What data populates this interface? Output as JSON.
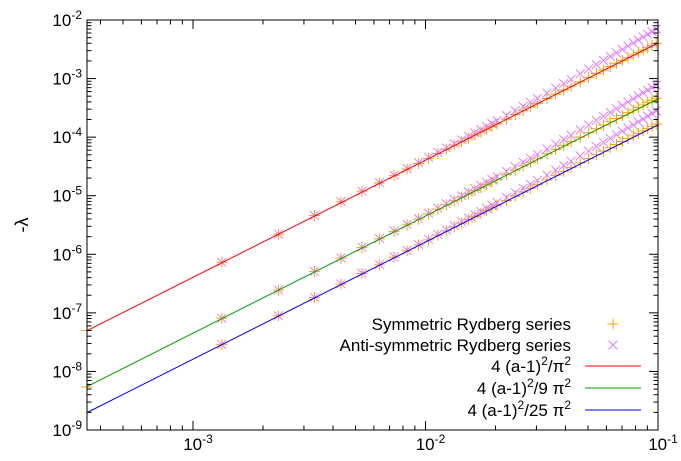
{
  "chart_data": {
    "type": "scatter",
    "title": "",
    "xlabel": "",
    "ylabel": "-λ",
    "xscale": "log",
    "yscale": "log",
    "xlim": [
      0.00035,
      0.1
    ],
    "ylim": [
      1e-09,
      0.01
    ],
    "grid": false,
    "legend_position": "bottom-right",
    "x_ticks": [
      {
        "value": 0.001,
        "base": "10",
        "exp": "-3"
      },
      {
        "value": 0.01,
        "base": "10",
        "exp": "-2"
      },
      {
        "value": 0.1,
        "base": "10",
        "exp": "-1"
      }
    ],
    "y_ticks": [
      {
        "value": 1e-09,
        "base": "10",
        "exp": "-9"
      },
      {
        "value": 1e-08,
        "base": "10",
        "exp": "-8"
      },
      {
        "value": 1e-07,
        "base": "10",
        "exp": "-7"
      },
      {
        "value": 1e-06,
        "base": "10",
        "exp": "-6"
      },
      {
        "value": 1e-05,
        "base": "10",
        "exp": "-5"
      },
      {
        "value": 0.0001,
        "base": "10",
        "exp": "-4"
      },
      {
        "value": 0.001,
        "base": "10",
        "exp": "-3"
      },
      {
        "value": 0.01,
        "base": "10",
        "exp": "-2"
      }
    ],
    "series": [
      {
        "name": "Symmetric Rydberg series",
        "kind": "points",
        "marker": "plus",
        "color": "#ffa000",
        "points": [
          [
            0.00035,
            5e-08
          ],
          [
            0.00133,
            7.3e-07
          ],
          [
            0.00233,
            2.2e-06
          ],
          [
            0.00333,
            4.6e-06
          ],
          [
            0.00433,
            7.9e-06
          ],
          [
            0.00533,
            1.2e-05
          ],
          [
            0.00633,
            1.65e-05
          ],
          [
            0.00733,
            2.2e-05
          ],
          [
            0.00833,
            2.85e-05
          ],
          [
            0.00933,
            3.55e-05
          ],
          [
            0.0103,
            4.35e-05
          ],
          [
            0.0113,
            5.25e-05
          ],
          [
            0.0123,
            6.2e-05
          ],
          [
            0.0133,
            7.3e-05
          ],
          [
            0.0143,
            8.4e-05
          ],
          [
            0.0153,
            9.6e-05
          ],
          [
            0.0163,
            0.000109
          ],
          [
            0.0173,
            0.000123
          ],
          [
            0.0183,
            0.000137
          ],
          [
            0.0193,
            0.000153
          ],
          [
            0.0203,
            0.000169
          ],
          [
            0.0223,
            0.000204
          ],
          [
            0.0243,
            0.000242
          ],
          [
            0.0263,
            0.000284
          ],
          [
            0.0283,
            0.000329
          ],
          [
            0.0303,
            0.000378
          ],
          [
            0.0333,
            0.000457
          ],
          [
            0.0363,
            0.000543
          ],
          [
            0.0393,
            0.000637
          ],
          [
            0.0423,
            0.000738
          ],
          [
            0.0463,
            0.000884
          ],
          [
            0.0503,
            0.00104
          ],
          [
            0.0543,
            0.00122
          ],
          [
            0.0583,
            0.0014
          ],
          [
            0.0623,
            0.0016
          ],
          [
            0.0663,
            0.00182
          ],
          [
            0.0703,
            0.00204
          ],
          [
            0.0743,
            0.00228
          ],
          [
            0.0783,
            0.00253
          ],
          [
            0.0823,
            0.0028
          ],
          [
            0.0863,
            0.00308
          ],
          [
            0.0903,
            0.00337
          ],
          [
            0.0943,
            0.00367
          ],
          [
            0.0983,
            0.00399
          ],
          [
            0.00035,
            5.4e-09
          ],
          [
            0.00133,
            8.1e-08
          ],
          [
            0.00233,
            2.45e-07
          ],
          [
            0.00333,
            5.1e-07
          ],
          [
            0.00433,
            8.6e-07
          ],
          [
            0.00533,
            1.3e-06
          ],
          [
            0.00633,
            1.84e-06
          ],
          [
            0.00733,
            2.46e-06
          ],
          [
            0.00833,
            3.18e-06
          ],
          [
            0.00933,
            3.99e-06
          ],
          [
            0.0103,
            4.9e-06
          ],
          [
            0.0113,
            5.9e-06
          ],
          [
            0.0123,
            7e-06
          ],
          [
            0.0133,
            8.2e-06
          ],
          [
            0.0143,
            9.5e-06
          ],
          [
            0.0153,
            1.08e-05
          ],
          [
            0.0163,
            1.23e-05
          ],
          [
            0.0173,
            1.38e-05
          ],
          [
            0.0183,
            1.55e-05
          ],
          [
            0.0193,
            1.72e-05
          ],
          [
            0.0203,
            1.91e-05
          ],
          [
            0.0223,
            2.31e-05
          ],
          [
            0.0243,
            2.74e-05
          ],
          [
            0.0263,
            3.21e-05
          ],
          [
            0.0283,
            3.72e-05
          ],
          [
            0.0303,
            4.28e-05
          ],
          [
            0.0333,
            5.17e-05
          ],
          [
            0.0363,
            6.15e-05
          ],
          [
            0.0393,
            7.22e-05
          ],
          [
            0.0423,
            8.39e-05
          ],
          [
            0.0463,
            0.0001
          ],
          [
            0.0503,
            0.000119
          ],
          [
            0.0543,
            0.000139
          ],
          [
            0.0583,
            0.00016
          ],
          [
            0.0623,
            0.000183
          ],
          [
            0.0663,
            0.000208
          ],
          [
            0.0703,
            0.000234
          ],
          [
            0.0743,
            0.000262
          ],
          [
            0.0783,
            0.000291
          ],
          [
            0.0823,
            0.000322
          ],
          [
            0.0863,
            0.000355
          ],
          [
            0.0903,
            0.000389
          ],
          [
            0.0943,
            0.000425
          ],
          [
            0.0983,
            0.000462
          ],
          [
            0.00133,
            2.9e-08
          ],
          [
            0.00233,
            8.9e-08
          ],
          [
            0.00333,
            1.83e-07
          ],
          [
            0.00433,
            3.1e-07
          ],
          [
            0.00533,
            4.7e-07
          ],
          [
            0.00633,
            6.6e-07
          ],
          [
            0.00733,
            8.9e-07
          ],
          [
            0.00833,
            1.15e-06
          ],
          [
            0.00933,
            1.44e-06
          ],
          [
            0.0103,
            1.76e-06
          ],
          [
            0.0113,
            2.12e-06
          ],
          [
            0.0123,
            2.52e-06
          ],
          [
            0.0133,
            2.95e-06
          ],
          [
            0.0143,
            3.41e-06
          ],
          [
            0.0153,
            3.9e-06
          ],
          [
            0.0163,
            4.43e-06
          ],
          [
            0.0173,
            5e-06
          ],
          [
            0.0183,
            5.6e-06
          ],
          [
            0.0193,
            6.2e-06
          ],
          [
            0.0203,
            6.9e-06
          ],
          [
            0.0223,
            8.3e-06
          ],
          [
            0.0243,
            9.9e-06
          ],
          [
            0.0263,
            1.16e-05
          ],
          [
            0.0283,
            1.34e-05
          ],
          [
            0.0303,
            1.54e-05
          ],
          [
            0.0333,
            1.86e-05
          ],
          [
            0.0363,
            2.22e-05
          ],
          [
            0.0393,
            2.6e-05
          ],
          [
            0.0423,
            3.02e-05
          ],
          [
            0.0463,
            3.63e-05
          ],
          [
            0.0503,
            4.29e-05
          ],
          [
            0.0543,
            5e-05
          ],
          [
            0.0583,
            5.77e-05
          ],
          [
            0.0623,
            6.6e-05
          ],
          [
            0.0663,
            7.48e-05
          ],
          [
            0.0703,
            8.43e-05
          ],
          [
            0.0743,
            9.43e-05
          ],
          [
            0.0783,
            0.000105
          ],
          [
            0.0823,
            0.000116
          ],
          [
            0.0863,
            0.000128
          ],
          [
            0.0903,
            0.00014
          ],
          [
            0.0943,
            0.000153
          ],
          [
            0.0983,
            0.000166
          ]
        ]
      },
      {
        "name": "Anti-symmetric Rydberg series",
        "kind": "points",
        "marker": "cross",
        "color": "#e080ff",
        "points": [
          [
            0.00133,
            7.3e-07
          ],
          [
            0.00233,
            2.2e-06
          ],
          [
            0.00333,
            4.6e-06
          ],
          [
            0.00433,
            8e-06
          ],
          [
            0.00533,
            1.2e-05
          ],
          [
            0.00633,
            1.67e-05
          ],
          [
            0.00733,
            2.25e-05
          ],
          [
            0.00833,
            2.92e-05
          ],
          [
            0.00933,
            3.67e-05
          ],
          [
            0.0103,
            4.52e-05
          ],
          [
            0.0113,
            5.48e-05
          ],
          [
            0.0123,
            6.55e-05
          ],
          [
            0.0133,
            7.73e-05
          ],
          [
            0.0143,
            9e-05
          ],
          [
            0.0153,
            0.000104
          ],
          [
            0.0163,
            0.000119
          ],
          [
            0.0173,
            0.000135
          ],
          [
            0.0183,
            0.000153
          ],
          [
            0.0193,
            0.000171
          ],
          [
            0.0203,
            0.000191
          ],
          [
            0.0223,
            0.000234
          ],
          [
            0.0243,
            0.000282
          ],
          [
            0.0263,
            0.000335
          ],
          [
            0.0283,
            0.000393
          ],
          [
            0.0303,
            0.000458
          ],
          [
            0.0333,
            0.000565
          ],
          [
            0.0363,
            0.000686
          ],
          [
            0.0393,
            0.00082
          ],
          [
            0.0423,
            0.00097
          ],
          [
            0.0463,
            0.0012
          ],
          [
            0.0503,
            0.00145
          ],
          [
            0.0543,
            0.00173
          ],
          [
            0.0583,
            0.00204
          ],
          [
            0.0623,
            0.00238
          ],
          [
            0.0663,
            0.00275
          ],
          [
            0.0703,
            0.00315
          ],
          [
            0.0743,
            0.00359
          ],
          [
            0.0783,
            0.00406
          ],
          [
            0.0823,
            0.00457
          ],
          [
            0.0863,
            0.00512
          ],
          [
            0.0903,
            0.0057
          ],
          [
            0.0943,
            0.00633
          ],
          [
            0.0983,
            0.00699
          ],
          [
            0.00133,
            8.1e-08
          ],
          [
            0.00233,
            2.47e-07
          ],
          [
            0.00333,
            5.1e-07
          ],
          [
            0.00433,
            8.7e-07
          ],
          [
            0.00533,
            1.32e-06
          ],
          [
            0.00633,
            1.86e-06
          ],
          [
            0.00733,
            2.5e-06
          ],
          [
            0.00833,
            3.24e-06
          ],
          [
            0.00933,
            4.08e-06
          ],
          [
            0.0103,
            5.02e-06
          ],
          [
            0.0113,
            6.1e-06
          ],
          [
            0.0123,
            7.28e-06
          ],
          [
            0.0133,
            8.6e-06
          ],
          [
            0.0143,
            1e-05
          ],
          [
            0.0153,
            1.16e-05
          ],
          [
            0.0163,
            1.32e-05
          ],
          [
            0.0173,
            1.5e-05
          ],
          [
            0.0183,
            1.7e-05
          ],
          [
            0.0193,
            1.9e-05
          ],
          [
            0.0203,
            2.12e-05
          ],
          [
            0.0223,
            2.6e-05
          ],
          [
            0.0243,
            3.13e-05
          ],
          [
            0.0263,
            3.72e-05
          ],
          [
            0.0283,
            4.37e-05
          ],
          [
            0.0303,
            5.09e-05
          ],
          [
            0.0333,
            6.28e-05
          ],
          [
            0.0363,
            7.62e-05
          ],
          [
            0.0393,
            9.11e-05
          ],
          [
            0.0423,
            0.000108
          ],
          [
            0.0463,
            0.000133
          ],
          [
            0.0503,
            0.000161
          ],
          [
            0.0543,
            0.000192
          ],
          [
            0.0583,
            0.000227
          ],
          [
            0.0623,
            0.000264
          ],
          [
            0.0663,
            0.000306
          ],
          [
            0.0703,
            0.00035
          ],
          [
            0.0743,
            0.000399
          ],
          [
            0.0783,
            0.000451
          ],
          [
            0.0823,
            0.000508
          ],
          [
            0.0863,
            0.000569
          ],
          [
            0.0903,
            0.000634
          ],
          [
            0.0943,
            0.000703
          ],
          [
            0.0983,
            0.000777
          ],
          [
            0.00133,
            2.9e-08
          ],
          [
            0.00233,
            8.9e-08
          ],
          [
            0.00333,
            1.84e-07
          ],
          [
            0.00433,
            3.13e-07
          ],
          [
            0.00533,
            4.76e-07
          ],
          [
            0.00633,
            6.7e-07
          ],
          [
            0.00733,
            9e-07
          ],
          [
            0.00833,
            1.17e-06
          ],
          [
            0.00933,
            1.47e-06
          ],
          [
            0.0103,
            1.81e-06
          ],
          [
            0.0113,
            2.19e-06
          ],
          [
            0.0123,
            2.62e-06
          ],
          [
            0.0133,
            3.09e-06
          ],
          [
            0.0143,
            3.6e-06
          ],
          [
            0.0153,
            4.16e-06
          ],
          [
            0.0163,
            4.76e-06
          ],
          [
            0.0173,
            5.41e-06
          ],
          [
            0.0183,
            6.1e-06
          ],
          [
            0.0193,
            6.85e-06
          ],
          [
            0.0203,
            7.64e-06
          ],
          [
            0.0223,
            9.35e-06
          ],
          [
            0.0243,
            1.13e-05
          ],
          [
            0.0263,
            1.34e-05
          ],
          [
            0.0283,
            1.57e-05
          ],
          [
            0.0303,
            1.83e-05
          ],
          [
            0.0333,
            2.26e-05
          ],
          [
            0.0363,
            2.74e-05
          ],
          [
            0.0393,
            3.28e-05
          ],
          [
            0.0423,
            3.88e-05
          ],
          [
            0.0463,
            4.79e-05
          ],
          [
            0.0503,
            5.79e-05
          ],
          [
            0.0543,
            6.92e-05
          ],
          [
            0.0583,
            8.15e-05
          ],
          [
            0.0623,
            9.52e-05
          ],
          [
            0.0663,
            0.00011
          ],
          [
            0.0703,
            0.000126
          ],
          [
            0.0743,
            0.000144
          ],
          [
            0.0783,
            0.000162
          ],
          [
            0.0823,
            0.000183
          ],
          [
            0.0863,
            0.000205
          ],
          [
            0.0903,
            0.000228
          ],
          [
            0.0943,
            0.000253
          ],
          [
            0.0983,
            0.00028
          ]
        ]
      },
      {
        "legend_base": "4 (a-1)",
        "legend_exp": "2",
        "legend_tail": "/π",
        "legend_tail_exp": "2",
        "kind": "line",
        "color": "#ff0000",
        "line": [
          [
            0.00035,
            4.96e-08
          ],
          [
            0.1,
            0.00405
          ]
        ]
      },
      {
        "legend_base": "4 (a-1)",
        "legend_exp": "2",
        "legend_tail": "/9 π",
        "legend_tail_exp": "2",
        "kind": "line",
        "color": "#00a000",
        "line": [
          [
            0.00035,
            5.51e-09
          ],
          [
            0.1,
            0.00045
          ]
        ]
      },
      {
        "legend_base": "4 (a-1)",
        "legend_exp": "2",
        "legend_tail": "/25 π",
        "legend_tail_exp": "2",
        "kind": "line",
        "color": "#0000ff",
        "line": [
          [
            0.00035,
            1.98e-09
          ],
          [
            0.1,
            0.000162
          ]
        ]
      }
    ]
  }
}
